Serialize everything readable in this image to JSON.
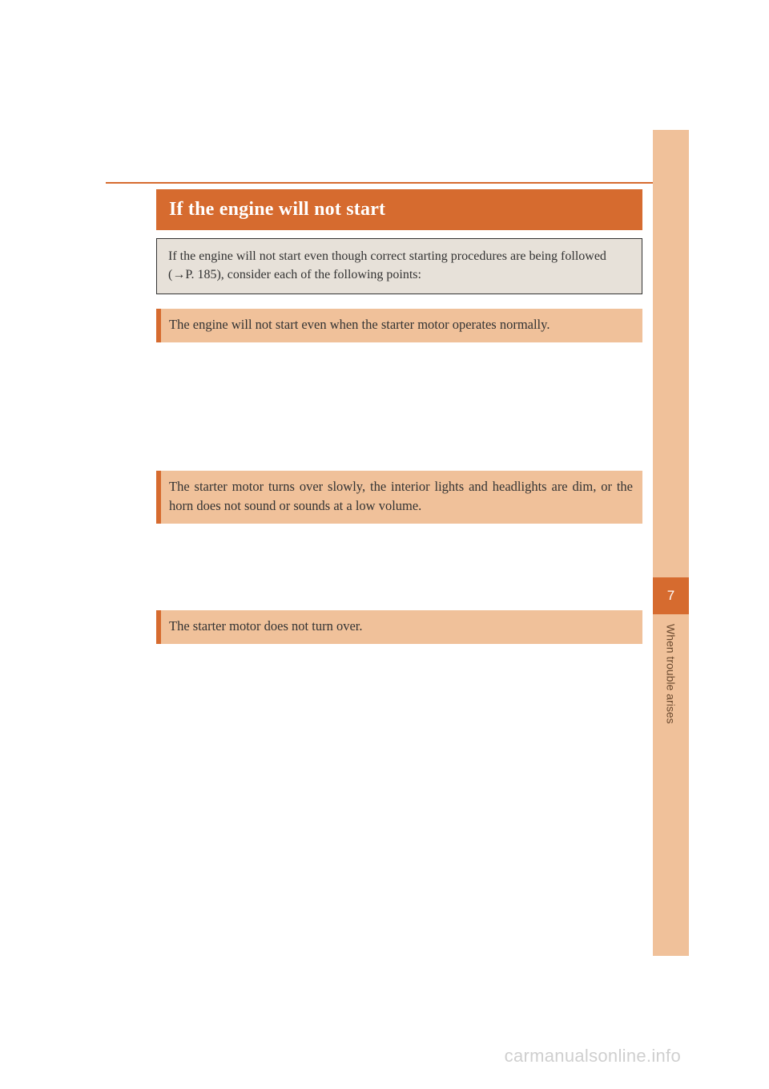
{
  "colors": {
    "accent": "#d66b2f",
    "accent_light": "#f0c19a",
    "intro_bg": "#e7e1d9",
    "text_dark": "#333333",
    "text_light": "#ffffff",
    "tab_text": "#6b4a2f",
    "watermark": "#cfcfcf"
  },
  "title": "If the engine will not start",
  "intro": "If the engine will not start even though correct starting procedures are being followed (→P. 185), consider each of the following points:",
  "sections": [
    "The engine will not start even when the starter motor operates normally.",
    "The starter motor turns over slowly, the interior lights and headlights are dim, or the horn does not sound or sounds at a low volume.",
    "The starter motor does not turn over."
  ],
  "sidebar": {
    "chapter_number": "7",
    "chapter_label": "When trouble arises"
  },
  "watermark": "carmanualsonline.info"
}
